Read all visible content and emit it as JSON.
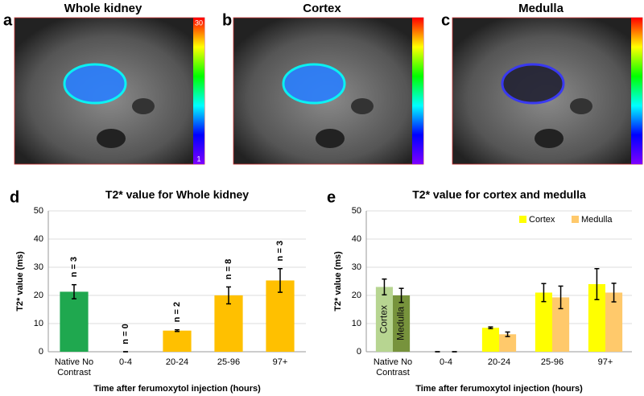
{
  "image_panels": [
    {
      "letter": "a",
      "title": "Whole kidney",
      "colorbar_max": 30,
      "colorbar_min": 1
    },
    {
      "letter": "b",
      "title": "Cortex"
    },
    {
      "letter": "c",
      "title": "Medulla"
    }
  ],
  "chart_data": [
    {
      "type": "bar",
      "letter": "d",
      "title": "T2* value for Whole kidney",
      "x_label": "Time after ferumoxytol injection (hours)",
      "y_label": "T2* value (ms)",
      "categories": [
        "Native No Contrast",
        "0-4",
        "20-24",
        "25-96",
        "97+"
      ],
      "series": [
        {
          "values": [
            21.3,
            0,
            7.5,
            20,
            25.3
          ],
          "errors": [
            2.5,
            0,
            0.3,
            3,
            4.2
          ],
          "colors": [
            "#1fa84f",
            "#ffc000",
            "#ffc000",
            "#ffc000",
            "#ffc000"
          ]
        }
      ],
      "bar_labels": [
        "n = 3",
        "n = 0",
        "n = 2",
        "n = 8",
        "n = 3"
      ],
      "ylim": [
        0,
        50
      ],
      "yticks": [
        0,
        10,
        20,
        30,
        40,
        50
      ],
      "grid": true
    },
    {
      "type": "bar",
      "letter": "e",
      "title": "T2* value for cortex and medulla",
      "x_label": "Time after ferumoxytol injection (hours)",
      "y_label": "T2* value (ms)",
      "categories": [
        "Native No Contrast",
        "0-4",
        "20-24",
        "25-96",
        "97+"
      ],
      "series": [
        {
          "name": "Cortex",
          "color": "#ffff00",
          "values": [
            23,
            0,
            8.5,
            21,
            24
          ],
          "errors": [
            2.8,
            0,
            0.3,
            3.2,
            5.5
          ],
          "colors": [
            "#b7d591",
            "#ffff00",
            "#ffff00",
            "#ffff00",
            "#ffff00"
          ]
        },
        {
          "name": "Medulla",
          "color": "#ffc96b",
          "values": [
            20,
            0,
            6.2,
            19.3,
            21
          ],
          "errors": [
            2.5,
            0,
            0.8,
            4,
            3.3
          ],
          "colors": [
            "#77933c",
            "#ffc96b",
            "#ffc96b",
            "#ffc96b",
            "#ffc96b"
          ]
        }
      ],
      "ylim": [
        0,
        50
      ],
      "yticks": [
        0,
        10,
        20,
        30,
        40,
        50
      ],
      "grid": true,
      "legend": "top-right"
    }
  ]
}
